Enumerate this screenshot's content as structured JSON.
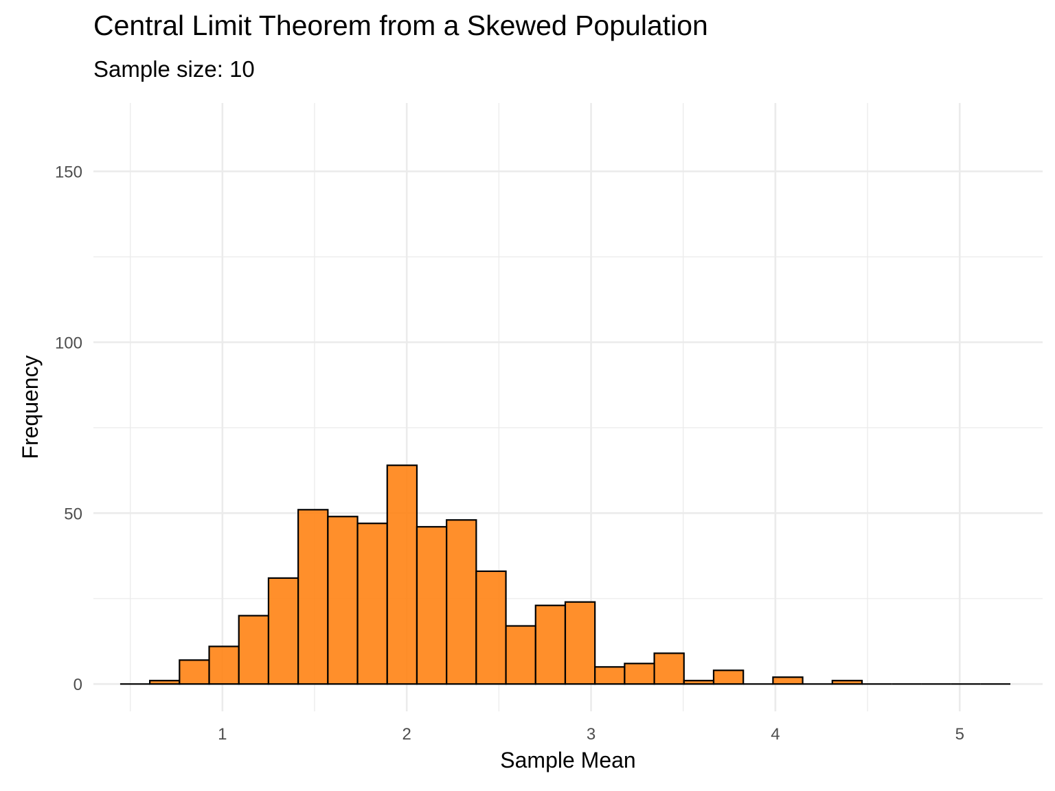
{
  "chart_data": {
    "type": "bar",
    "title": "Central Limit Theorem from a Skewed Population",
    "subtitle": "Sample size: 10",
    "xlabel": "Sample Mean",
    "ylabel": "Frequency",
    "xlim": [
      0.3,
      5.45
    ],
    "ylim": [
      -8,
      170
    ],
    "x_ticks": [
      "1",
      "2",
      "3",
      "4",
      "5"
    ],
    "y_ticks": [
      "0",
      "50",
      "100",
      "150"
    ],
    "grid": true,
    "bin_width": 0.161,
    "bins": [
      {
        "x0": 0.445,
        "x1": 0.606,
        "count": 0
      },
      {
        "x0": 0.606,
        "x1": 0.767,
        "count": 1
      },
      {
        "x0": 0.767,
        "x1": 0.928,
        "count": 7
      },
      {
        "x0": 0.928,
        "x1": 1.089,
        "count": 11
      },
      {
        "x0": 1.089,
        "x1": 1.25,
        "count": 20
      },
      {
        "x0": 1.25,
        "x1": 1.411,
        "count": 31
      },
      {
        "x0": 1.411,
        "x1": 1.572,
        "count": 51
      },
      {
        "x0": 1.572,
        "x1": 1.733,
        "count": 49
      },
      {
        "x0": 1.733,
        "x1": 1.894,
        "count": 47
      },
      {
        "x0": 1.894,
        "x1": 2.055,
        "count": 64
      },
      {
        "x0": 2.055,
        "x1": 2.216,
        "count": 46
      },
      {
        "x0": 2.216,
        "x1": 2.377,
        "count": 48
      },
      {
        "x0": 2.377,
        "x1": 2.538,
        "count": 33
      },
      {
        "x0": 2.538,
        "x1": 2.699,
        "count": 17
      },
      {
        "x0": 2.699,
        "x1": 2.86,
        "count": 23
      },
      {
        "x0": 2.86,
        "x1": 3.021,
        "count": 24
      },
      {
        "x0": 3.021,
        "x1": 3.182,
        "count": 5
      },
      {
        "x0": 3.182,
        "x1": 3.343,
        "count": 6
      },
      {
        "x0": 3.343,
        "x1": 3.504,
        "count": 9
      },
      {
        "x0": 3.504,
        "x1": 3.665,
        "count": 1
      },
      {
        "x0": 3.665,
        "x1": 3.826,
        "count": 4
      },
      {
        "x0": 3.826,
        "x1": 3.987,
        "count": 0
      },
      {
        "x0": 3.987,
        "x1": 4.148,
        "count": 2
      },
      {
        "x0": 4.148,
        "x1": 4.309,
        "count": 0
      },
      {
        "x0": 4.309,
        "x1": 4.47,
        "count": 1
      },
      {
        "x0": 4.47,
        "x1": 4.631,
        "count": 0
      },
      {
        "x0": 4.631,
        "x1": 4.792,
        "count": 0
      },
      {
        "x0": 4.792,
        "x1": 4.953,
        "count": 0
      },
      {
        "x0": 4.953,
        "x1": 5.114,
        "count": 0
      },
      {
        "x0": 5.114,
        "x1": 5.275,
        "count": 0
      }
    ],
    "colors": {
      "bar_fill": "#ff7f0e",
      "bar_outline": "#000000",
      "grid": "#ebebeb",
      "tick_text": "#4d4d4d"
    }
  }
}
